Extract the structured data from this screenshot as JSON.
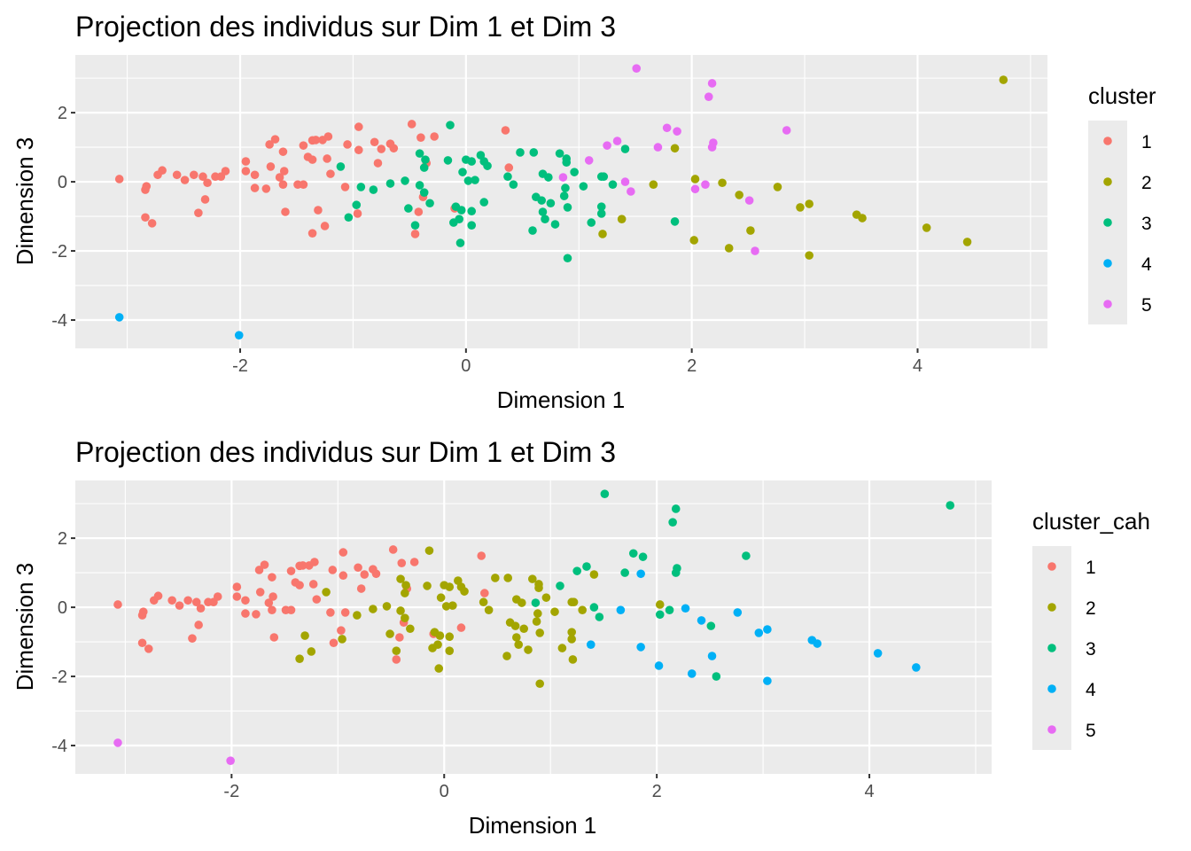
{
  "chart_data": [
    {
      "type": "scatter",
      "title": "Projection des individus sur Dim 1 et Dim 3",
      "xlabel": "Dimension 1",
      "ylabel": "Dimension 3",
      "xlim": [
        -3.46,
        5.15
      ],
      "ylim": [
        -4.82,
        3.67
      ],
      "xticks": [
        -2,
        0,
        2,
        4
      ],
      "yticks": [
        -4,
        -2,
        0,
        2
      ],
      "grid": true,
      "color_by": "cluster",
      "legend": {
        "title": "cluster",
        "placement": "right",
        "entries": [
          "1",
          "2",
          "3",
          "4",
          "5"
        ]
      }
    },
    {
      "type": "scatter",
      "title": "Projection des individus sur Dim 1 et Dim 3",
      "xlabel": "Dimension 1",
      "ylabel": "Dimension 3",
      "xlim": [
        -3.47,
        5.15
      ],
      "ylim": [
        -4.82,
        3.67
      ],
      "xticks": [
        -2,
        0,
        2,
        4
      ],
      "yticks": [
        -4,
        -2,
        0,
        2
      ],
      "grid": true,
      "color_by": "cluster_cah",
      "legend": {
        "title": "cluster_cah",
        "placement": "right",
        "entries": [
          "1",
          "2",
          "3",
          "4",
          "5"
        ]
      }
    }
  ],
  "palette": {
    "1": "#F8766D",
    "2": "#A3A500",
    "3": "#00BF7D",
    "4": "#00B0F6",
    "5": "#E76BF3"
  },
  "points_fields": [
    "dim1",
    "dim3",
    "cluster",
    "cluster_cah"
  ],
  "points": [
    [
      -3.07,
      0.08,
      1,
      1
    ],
    [
      -2.83,
      -0.13,
      1,
      1
    ],
    [
      -2.84,
      -0.23,
      1,
      1
    ],
    [
      -2.84,
      -1.03,
      1,
      1
    ],
    [
      -2.78,
      -1.2,
      1,
      1
    ],
    [
      -2.73,
      0.2,
      1,
      1
    ],
    [
      -2.69,
      0.33,
      1,
      1
    ],
    [
      -2.56,
      0.2,
      1,
      1
    ],
    [
      -2.49,
      0.05,
      1,
      1
    ],
    [
      -2.41,
      0.2,
      1,
      1
    ],
    [
      -2.33,
      0.15,
      1,
      1
    ],
    [
      -2.29,
      -0.03,
      1,
      1
    ],
    [
      -2.31,
      -0.51,
      1,
      1
    ],
    [
      -2.37,
      -0.9,
      1,
      1
    ],
    [
      -2.22,
      0.15,
      1,
      1
    ],
    [
      -2.17,
      0.15,
      1,
      1
    ],
    [
      -2.13,
      0.31,
      1,
      1
    ],
    [
      -1.95,
      0.59,
      1,
      1
    ],
    [
      -1.95,
      0.31,
      1,
      1
    ],
    [
      -1.87,
      0.2,
      1,
      1
    ],
    [
      -1.87,
      -0.18,
      1,
      1
    ],
    [
      -1.77,
      -0.2,
      1,
      1
    ],
    [
      -1.74,
      1.08,
      1,
      1
    ],
    [
      -1.69,
      1.23,
      1,
      1
    ],
    [
      -1.62,
      0.87,
      1,
      1
    ],
    [
      -1.73,
      0.44,
      1,
      1
    ],
    [
      -1.61,
      0.31,
      1,
      1
    ],
    [
      -1.65,
      0.13,
      1,
      1
    ],
    [
      -1.62,
      -0.08,
      1,
      1
    ],
    [
      -1.6,
      -0.87,
      1,
      1
    ],
    [
      -1.49,
      -0.08,
      1,
      1
    ],
    [
      -1.44,
      -0.08,
      1,
      1
    ],
    [
      -1.44,
      1.05,
      1,
      1
    ],
    [
      -1.36,
      1.2,
      1,
      1
    ],
    [
      -1.33,
      1.21,
      1,
      1
    ],
    [
      -1.27,
      1.21,
      1,
      1
    ],
    [
      -1.22,
      1.31,
      1,
      1
    ],
    [
      -1.4,
      0.72,
      1,
      1
    ],
    [
      -1.36,
      0.64,
      1,
      1
    ],
    [
      -1.23,
      0.67,
      1,
      1
    ],
    [
      -1.2,
      0.23,
      1,
      1
    ],
    [
      -1.31,
      -0.82,
      1,
      2
    ],
    [
      -1.25,
      -1.28,
      1,
      2
    ],
    [
      -1.36,
      -1.49,
      1,
      2
    ],
    [
      -0.95,
      1.59,
      1,
      1
    ],
    [
      -1.05,
      1.08,
      1,
      1
    ],
    [
      -0.95,
      0.92,
      1,
      1
    ],
    [
      -0.81,
      1.15,
      1,
      1
    ],
    [
      -0.75,
      0.95,
      1,
      1
    ],
    [
      -0.67,
      1.1,
      1,
      1
    ],
    [
      -0.64,
      0.97,
      1,
      1
    ],
    [
      -0.78,
      0.54,
      1,
      1
    ],
    [
      -0.48,
      1.67,
      1,
      1
    ],
    [
      -0.4,
      1.28,
      1,
      1
    ],
    [
      -0.28,
      1.31,
      1,
      1
    ],
    [
      -0.35,
      0.54,
      1,
      1
    ],
    [
      -1.07,
      -0.15,
      1,
      1
    ],
    [
      -0.96,
      -0.92,
      1,
      2
    ],
    [
      -0.38,
      -0.44,
      1,
      1
    ],
    [
      -0.42,
      -0.87,
      1,
      1
    ],
    [
      -0.45,
      -1.51,
      1,
      1
    ],
    [
      -0.1,
      -0.77,
      1,
      1
    ],
    [
      0.35,
      1.49,
      1,
      1
    ],
    [
      0.38,
      0.41,
      1,
      1
    ],
    [
      -1.11,
      0.44,
      3,
      2
    ],
    [
      -0.14,
      1.64,
      3,
      2
    ],
    [
      -0.41,
      0.82,
      3,
      2
    ],
    [
      -0.36,
      0.64,
      3,
      2
    ],
    [
      -0.37,
      0.41,
      3,
      2
    ],
    [
      -0.16,
      0.62,
      3,
      2
    ],
    [
      0.0,
      0.64,
      3,
      2
    ],
    [
      0.05,
      0.59,
      3,
      2
    ],
    [
      0.13,
      0.77,
      3,
      2
    ],
    [
      0.16,
      0.59,
      3,
      2
    ],
    [
      0.19,
      0.46,
      3,
      2
    ],
    [
      -0.03,
      0.28,
      3,
      2
    ],
    [
      0.02,
      0.03,
      3,
      2
    ],
    [
      0.08,
      0.05,
      3,
      2
    ],
    [
      0.48,
      0.85,
      3,
      2
    ],
    [
      0.6,
      0.85,
      3,
      2
    ],
    [
      0.83,
      0.82,
      3,
      2
    ],
    [
      0.89,
      0.67,
      3,
      2
    ],
    [
      0.89,
      0.56,
      3,
      2
    ],
    [
      0.96,
      0.28,
      3,
      2
    ],
    [
      0.37,
      0.15,
      3,
      2
    ],
    [
      0.42,
      -0.08,
      3,
      2
    ],
    [
      0.68,
      0.23,
      3,
      2
    ],
    [
      0.73,
      0.13,
      3,
      2
    ],
    [
      0.88,
      -0.18,
      3,
      2
    ],
    [
      0.87,
      -0.41,
      3,
      2
    ],
    [
      1.04,
      -0.13,
      3,
      2
    ],
    [
      1.2,
      0.15,
      3,
      2
    ],
    [
      -0.93,
      -0.15,
      3,
      1
    ],
    [
      -0.82,
      -0.23,
      3,
      2
    ],
    [
      -0.67,
      -0.05,
      3,
      2
    ],
    [
      -0.54,
      0.03,
      3,
      2
    ],
    [
      -0.41,
      -0.1,
      3,
      2
    ],
    [
      -0.37,
      -0.31,
      3,
      2
    ],
    [
      -0.32,
      -0.62,
      3,
      2
    ],
    [
      -0.97,
      -0.67,
      3,
      1
    ],
    [
      -1.04,
      -1.03,
      3,
      1
    ],
    [
      -0.51,
      -0.77,
      3,
      2
    ],
    [
      -0.45,
      -1.26,
      3,
      2
    ],
    [
      -0.09,
      -0.72,
      3,
      2
    ],
    [
      -0.04,
      -0.82,
      3,
      2
    ],
    [
      0.05,
      -0.85,
      3,
      2
    ],
    [
      0.16,
      -0.59,
      3,
      1
    ],
    [
      -0.11,
      -1.18,
      3,
      2
    ],
    [
      -0.06,
      -1.08,
      3,
      2
    ],
    [
      0.05,
      -1.26,
      3,
      2
    ],
    [
      -0.05,
      -1.77,
      3,
      2
    ],
    [
      0.62,
      -0.44,
      3,
      2
    ],
    [
      0.67,
      -0.54,
      3,
      2
    ],
    [
      0.75,
      -0.62,
      3,
      2
    ],
    [
      0.9,
      -0.74,
      3,
      2
    ],
    [
      0.68,
      -0.87,
      3,
      2
    ],
    [
      0.7,
      -1.08,
      3,
      2
    ],
    [
      0.79,
      -1.23,
      3,
      2
    ],
    [
      0.59,
      -1.41,
      3,
      2
    ],
    [
      1.11,
      -1.18,
      3,
      2
    ],
    [
      1.2,
      -0.72,
      3,
      2
    ],
    [
      1.2,
      -0.92,
      3,
      2
    ],
    [
      0.9,
      -2.21,
      3,
      2
    ],
    [
      1.41,
      0.95,
      3,
      2
    ],
    [
      1.22,
      0.15,
      3,
      2
    ],
    [
      1.3,
      -0.08,
      3,
      2
    ],
    [
      1.85,
      -1.15,
      3,
      4
    ],
    [
      1.09,
      0.62,
      5,
      3
    ],
    [
      0.86,
      0.13,
      5,
      3
    ],
    [
      1.51,
      3.28,
      5,
      3
    ],
    [
      2.18,
      2.85,
      5,
      3
    ],
    [
      2.15,
      2.46,
      5,
      3
    ],
    [
      1.78,
      1.56,
      5,
      3
    ],
    [
      1.87,
      1.46,
      5,
      3
    ],
    [
      2.84,
      1.49,
      5,
      3
    ],
    [
      1.25,
      1.05,
      5,
      3
    ],
    [
      1.34,
      1.18,
      5,
      3
    ],
    [
      1.7,
      1.0,
      5,
      3
    ],
    [
      2.19,
      1.13,
      5,
      3
    ],
    [
      2.18,
      1.0,
      5,
      3
    ],
    [
      1.41,
      0.0,
      5,
      3
    ],
    [
      1.46,
      -0.28,
      5,
      3
    ],
    [
      2.03,
      -0.21,
      5,
      3
    ],
    [
      2.12,
      -0.08,
      5,
      3
    ],
    [
      2.51,
      -0.54,
      5,
      3
    ],
    [
      2.56,
      -2.0,
      5,
      3
    ],
    [
      4.76,
      2.95,
      2,
      3
    ],
    [
      1.85,
      0.97,
      2,
      4
    ],
    [
      1.66,
      -0.08,
      2,
      4
    ],
    [
      2.03,
      0.08,
      2,
      2
    ],
    [
      2.27,
      -0.03,
      2,
      4
    ],
    [
      2.42,
      -0.38,
      2,
      4
    ],
    [
      2.76,
      -0.15,
      2,
      4
    ],
    [
      2.96,
      -0.74,
      2,
      4
    ],
    [
      3.04,
      -0.64,
      2,
      4
    ],
    [
      3.46,
      -0.95,
      2,
      4
    ],
    [
      3.51,
      -1.05,
      2,
      4
    ],
    [
      4.08,
      -1.33,
      2,
      4
    ],
    [
      4.44,
      -1.74,
      2,
      4
    ],
    [
      1.38,
      -1.08,
      2,
      4
    ],
    [
      1.21,
      -1.51,
      2,
      2
    ],
    [
      2.52,
      -1.41,
      2,
      4
    ],
    [
      2.02,
      -1.69,
      2,
      4
    ],
    [
      2.33,
      -1.92,
      2,
      4
    ],
    [
      3.04,
      -2.13,
      2,
      4
    ],
    [
      -3.07,
      -3.92,
      4,
      5
    ],
    [
      -2.01,
      -4.44,
      4,
      5
    ]
  ]
}
